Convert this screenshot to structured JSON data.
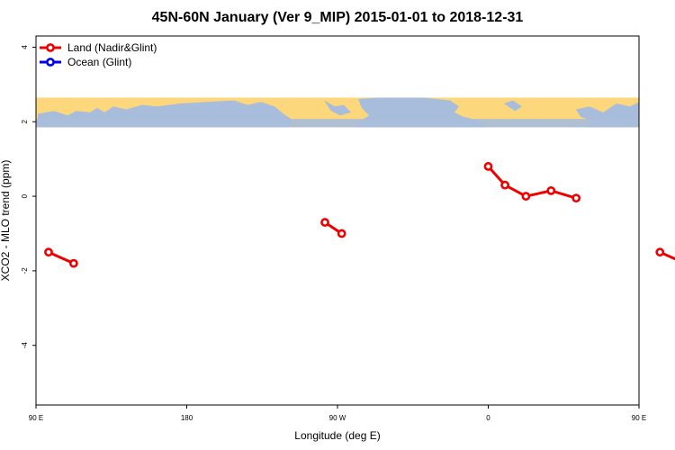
{
  "chart_data": {
    "type": "line",
    "title": "45N-60N January (Ver 9_MIP)   2015-01-01 to 2018-12-31",
    "xlabel": "Longitude (deg E)",
    "ylabel": "XCO2 - MLO trend (ppm)",
    "xlim": [
      90,
      450
    ],
    "ylim": [
      -5.6,
      4.3
    ],
    "x_ticks": [
      {
        "value": 90,
        "label": "90 E"
      },
      {
        "value": 180,
        "label": "180"
      },
      {
        "value": 270,
        "label": "90 W"
      },
      {
        "value": 360,
        "label": "0"
      },
      {
        "value": 450,
        "label": "90 E"
      },
      {
        "value": 540,
        "label": "180"
      }
    ],
    "y_ticks": [
      {
        "value": 4,
        "label": "4"
      },
      {
        "value": 2,
        "label": "2"
      },
      {
        "value": 0,
        "label": "0"
      },
      {
        "value": -2,
        "label": "-2"
      },
      {
        "value": -4,
        "label": "-4"
      }
    ],
    "map_band": {
      "y_range": [
        1.85,
        2.65
      ],
      "ocean_color": "#a8bcdc",
      "land_color": "#fdd77b"
    },
    "legend": {
      "placement": "top-left",
      "entries": [
        {
          "label": "Land (Nadir&Glint)",
          "color": "#ee0000"
        },
        {
          "label": "Ocean (Glint)",
          "color": "#0000ee"
        }
      ]
    },
    "series": [
      {
        "name": "Land (Nadir&Glint)",
        "color": "#ee0000",
        "segments": [
          [
            {
              "x": 97.5,
              "y": -1.5
            },
            {
              "x": 112.5,
              "y": -1.8
            }
          ],
          [
            {
              "x": 262.5,
              "y": -0.7
            },
            {
              "x": 272.5,
              "y": -1.0
            }
          ],
          [
            {
              "x": 360,
              "y": 0.8
            },
            {
              "x": 370,
              "y": 0.3
            },
            {
              "x": 382.5,
              "y": 0.0
            },
            {
              "x": 397.5,
              "y": 0.15
            },
            {
              "x": 412.5,
              "y": -0.05
            }
          ],
          [
            {
              "x": 462.5,
              "y": -1.5
            },
            {
              "x": 477.5,
              "y": -1.8
            }
          ]
        ]
      },
      {
        "name": "Ocean (Glint)",
        "color": "#0000ee",
        "segments": []
      }
    ]
  }
}
